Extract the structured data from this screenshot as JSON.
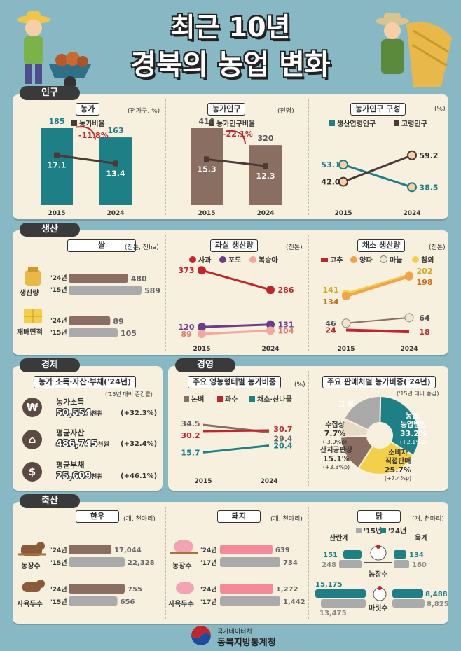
{
  "title": {
    "line1": "최근 10년",
    "line2": "경북의 농업 변화"
  },
  "sections": {
    "population": "인구",
    "production": "생산",
    "economy": "경제",
    "management": "경영",
    "livestock": "축산"
  },
  "colors": {
    "brown": "#8b6e62",
    "teal": "#1f7f86",
    "red": "#c0272d",
    "purple": "#6a3d8c",
    "pink": "#f4a7a0",
    "yellow": "#f4d04a",
    "gray": "#aaaaaa",
    "olive": "#6e5a3a",
    "dark": "#4a3a33"
  },
  "population": {
    "farms": {
      "label": "농가",
      "unit": "(천가구, %)",
      "legend": "농가비율",
      "change": "-11.8%",
      "years": [
        "2015",
        "2024"
      ],
      "values": [
        185,
        163
      ],
      "ratios": [
        17.1,
        13.4
      ]
    },
    "people": {
      "label": "농가인구",
      "unit": "(천명)",
      "legend": "농가인구비율",
      "change": "-22.1%",
      "years": [
        "2015",
        "2024"
      ],
      "values": [
        410,
        320
      ],
      "ratios": [
        15.3,
        12.3
      ]
    },
    "composition": {
      "label": "농가인구 구성",
      "unit": "(%)",
      "legend_working": "생산연령인구",
      "legend_old": "고령인구",
      "years": [
        "2015",
        "2024"
      ],
      "working": [
        53.1,
        38.5
      ],
      "old": [
        42.0,
        59.2
      ]
    }
  },
  "production": {
    "rice": {
      "label": "쌀",
      "unit": "(천톤, 천ha)",
      "output_label": "생산량",
      "area_label": "재배면적",
      "year_a": "'24년",
      "year_b": "'15년",
      "output": [
        480,
        589
      ],
      "area": [
        89,
        105
      ]
    },
    "fruit": {
      "label": "과실 생산량",
      "unit": "(천톤)",
      "legend": [
        "사과",
        "포도",
        "복숭아"
      ],
      "years": [
        "2015",
        "2024"
      ],
      "apple": [
        373,
        286
      ],
      "grape": [
        120,
        131
      ],
      "peach": [
        89,
        104
      ]
    },
    "veg": {
      "label": "채소 생산량",
      "unit": "(천톤)",
      "legend": [
        "고추",
        "양파",
        "마늘",
        "참외"
      ],
      "years": [
        "2015",
        "2024"
      ],
      "melon": [
        141,
        202
      ],
      "onion": [
        134,
        198
      ],
      "garlic": [
        46,
        64
      ],
      "pepper": [
        24,
        18
      ]
    }
  },
  "economy": {
    "label": "농가 소득·자산·부채('24년)",
    "note": "('15년 대비 증감률)",
    "items": [
      {
        "name": "농가소득",
        "value": "50,554",
        "unit": "천원",
        "change": "(+32.3%)"
      },
      {
        "name": "평균자산",
        "value": "486,745",
        "unit": "천원",
        "change": "(+32.4%)"
      },
      {
        "name": "평균부채",
        "value": "25,609",
        "unit": "천원",
        "change": "(+46.1%)"
      }
    ]
  },
  "management": {
    "type": {
      "label": "주요 영농형태별 농가비중",
      "unit": "(%)",
      "legend": [
        "논벼",
        "과수",
        "채소·산나물"
      ],
      "years": [
        "2015",
        "2024"
      ],
      "rice": [
        34.5,
        29.4
      ],
      "fruit": [
        30.2,
        30.7
      ],
      "veg": [
        15.7,
        20.4
      ]
    },
    "sales": {
      "label": "주요 판매처별 농가비중('24년)",
      "note": "('15년 대비 증감)",
      "slices": [
        {
          "name": "농협, 농업법인",
          "value": 33.2,
          "pct": "33.2%",
          "change": "(+2.1%p)"
        },
        {
          "name": "소비자 직접판매",
          "value": 25.7,
          "pct": "25.7%",
          "change": "(+7.4%p)"
        },
        {
          "name": "산지공판장",
          "value": 15.1,
          "pct": "15.1%",
          "change": "(+3.3%p)"
        },
        {
          "name": "수집상",
          "value": 7.7,
          "pct": "7.7%",
          "change": "(-3.0%p)"
        },
        {
          "name": "그 외",
          "value": 18.3,
          "pct": "",
          "change": ""
        }
      ]
    }
  },
  "livestock": {
    "hanwoo": {
      "label": "한우",
      "unit": "(개, 천마리)",
      "farms_label": "농장수",
      "heads_label": "사육두수",
      "year_a": "'24년",
      "year_b": "'15년",
      "farms": [
        17044,
        22328
      ],
      "heads": [
        755,
        656
      ],
      "farms_txt": [
        "17,044",
        "22,328"
      ],
      "heads_txt": [
        "755",
        "656"
      ]
    },
    "pig": {
      "label": "돼지",
      "unit": "(개, 천마리)",
      "farms_label": "농장수",
      "heads_label": "사육두수",
      "year_a": "'24년",
      "year_b": "'17년",
      "farms": [
        639,
        734
      ],
      "heads": [
        1272,
        1442
      ],
      "farms_txt": [
        "639",
        "734"
      ],
      "heads_txt": [
        "1,272",
        "1,442"
      ]
    },
    "chicken": {
      "label": "닭",
      "unit": "(개, 천마리)",
      "legend_a": "'15년",
      "legend_b": "'24년",
      "layer": "산란계",
      "broiler": "육계",
      "farms_label": "농장수",
      "heads_label": "마릿수",
      "layer_farms": [
        "248",
        "151"
      ],
      "broiler_farms": [
        "160",
        "134"
      ],
      "layer_heads": [
        "13,475",
        "15,175"
      ],
      "broiler_heads": [
        "8,825",
        "8,488"
      ]
    }
  },
  "footer": {
    "line1": "국가데이터처",
    "line2": "동북지방통계청"
  }
}
